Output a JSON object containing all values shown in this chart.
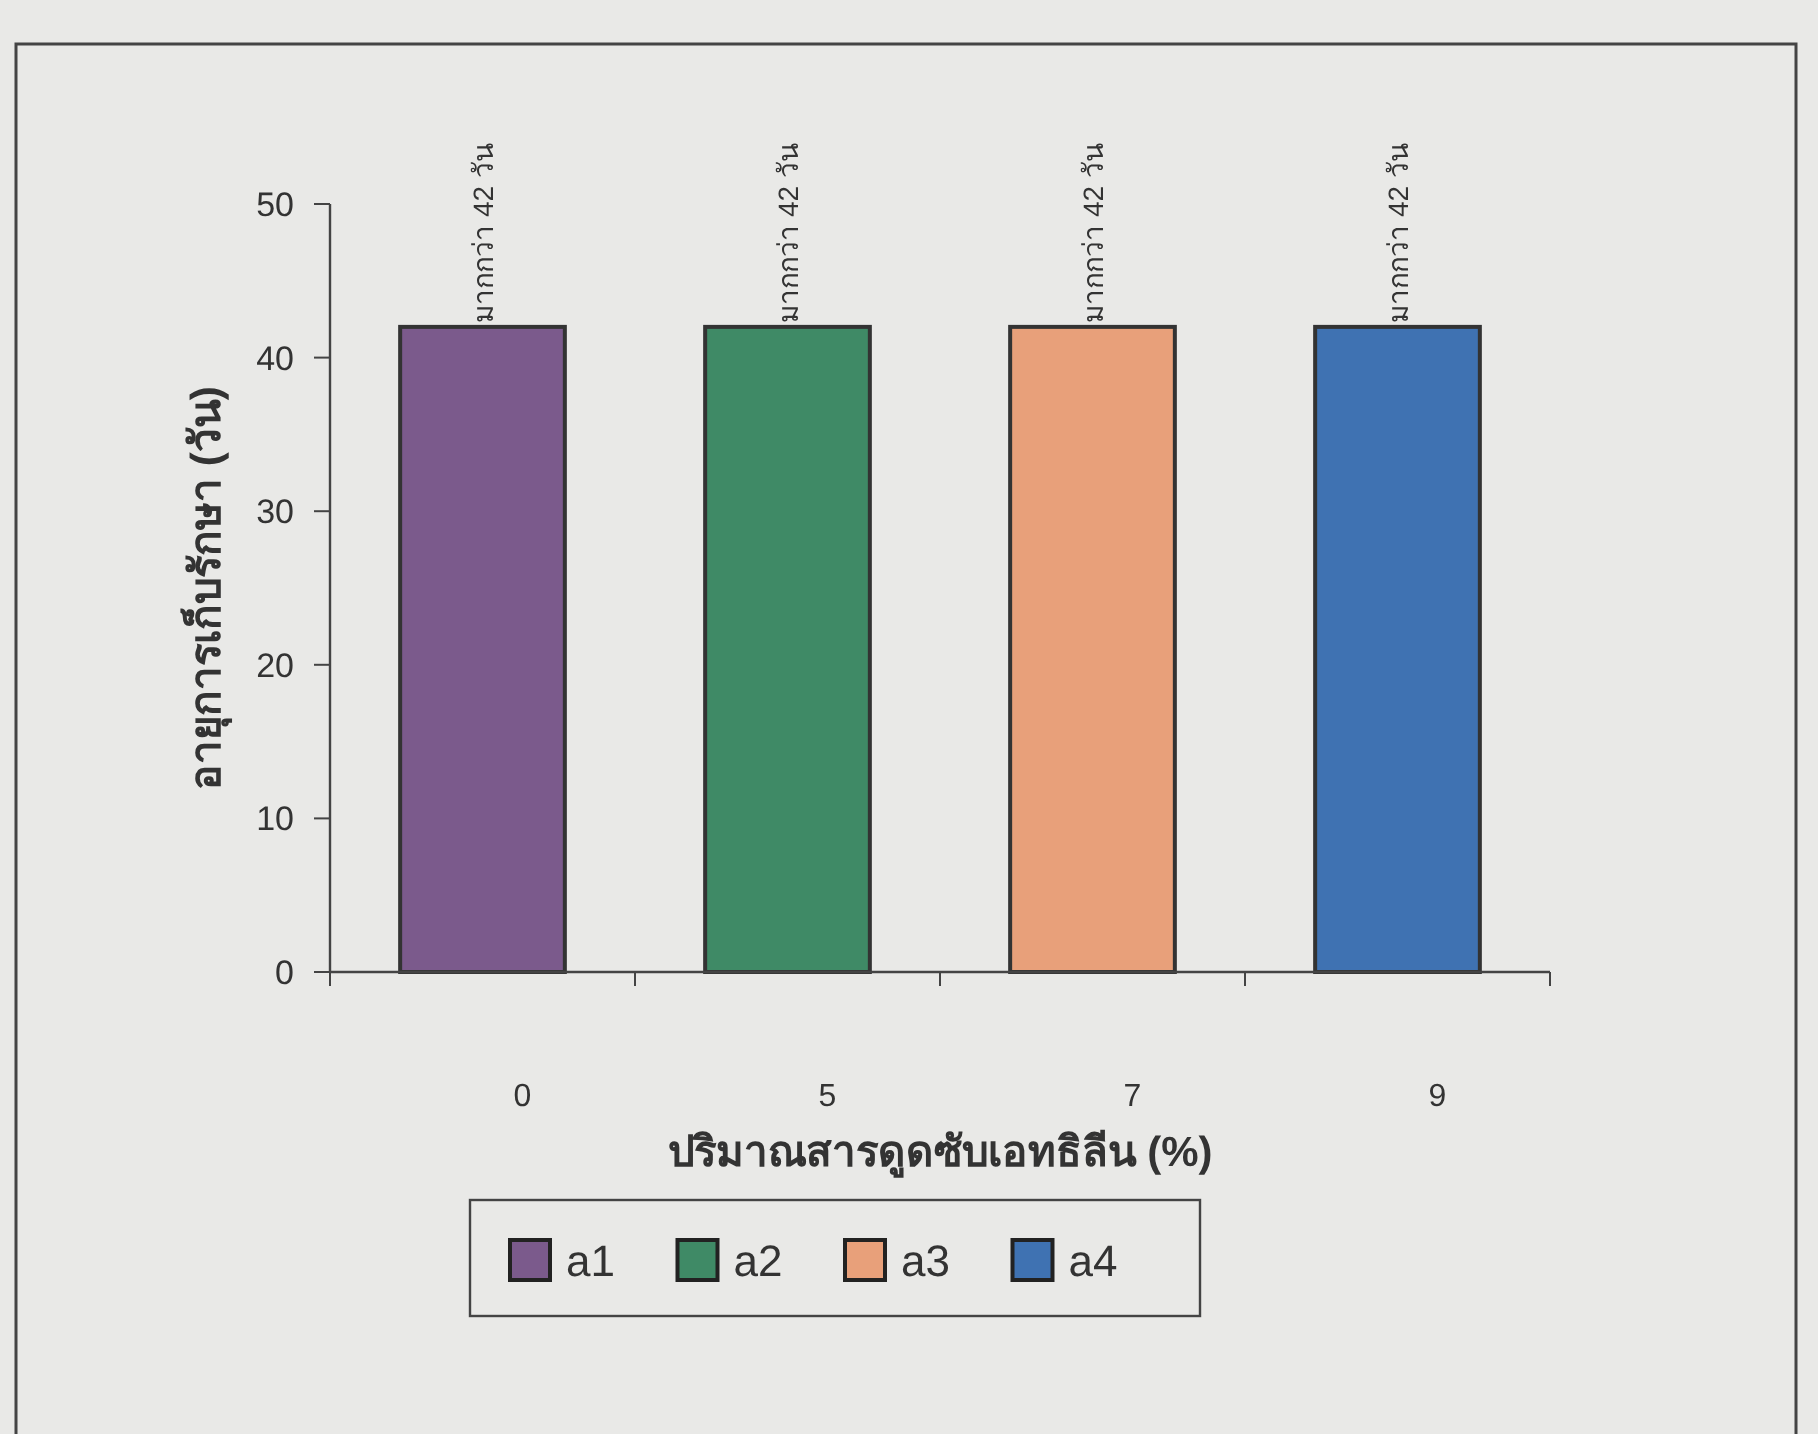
{
  "chart_data": {
    "type": "bar",
    "xlabel": "ปริมาณสารดูดซับเอทธิลีน (%)",
    "ylabel": "อายุการเก็บรักษา (วัน)",
    "categories": [
      "0",
      "5",
      "7",
      "9"
    ],
    "series": [
      {
        "name": "a1",
        "color": "#7b5a8c",
        "values": [
          42,
          null,
          null,
          null
        ],
        "value_labels": [
          "มากกว่า 42 วัน",
          null,
          null,
          null
        ]
      },
      {
        "name": "a2",
        "color": "#3f8a66",
        "values": [
          null,
          42,
          null,
          null
        ],
        "value_labels": [
          null,
          "มากกว่า 42 วัน",
          null,
          null
        ]
      },
      {
        "name": "a3",
        "color": "#e8a07a",
        "values": [
          null,
          null,
          42,
          null
        ],
        "value_labels": [
          null,
          null,
          "มากกว่า 42 วัน",
          null
        ]
      },
      {
        "name": "a4",
        "color": "#3f72b2",
        "values": [
          null,
          null,
          null,
          42
        ],
        "value_labels": [
          null,
          null,
          null,
          "มากกว่า 42 วัน"
        ]
      }
    ],
    "ylim": [
      0,
      50
    ],
    "yticks": [
      0,
      10,
      20,
      30,
      40,
      50
    ],
    "grid": false,
    "legend": "bottom"
  }
}
